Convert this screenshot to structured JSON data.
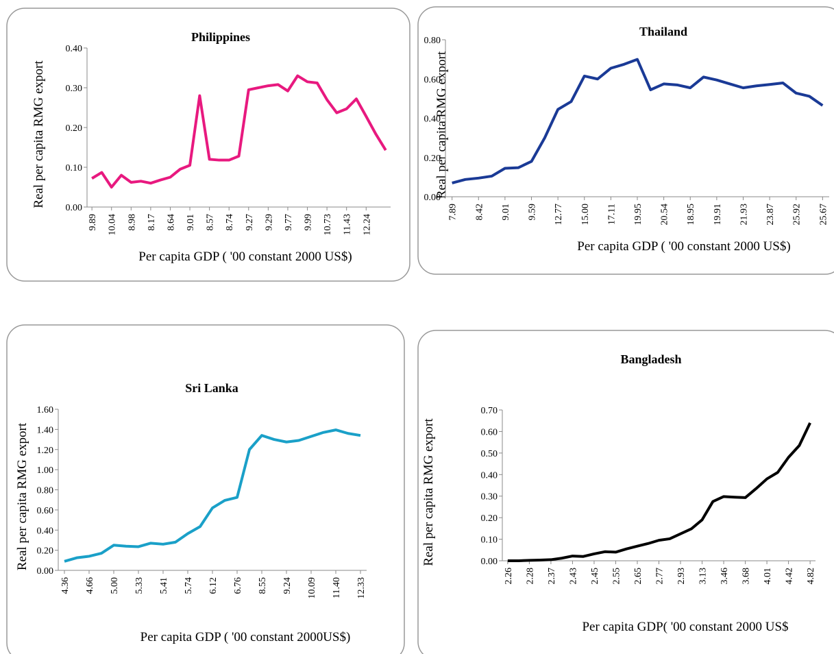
{
  "chart_data": [
    {
      "type": "line",
      "title": "Philippines",
      "y_label": "Real per capita RMG export",
      "x_label": "Per capita GDP ( '00 constant 2000 US$)",
      "categories": [
        "9.89",
        null,
        "10.04",
        null,
        "8.98",
        null,
        "8.17",
        null,
        "8.64",
        null,
        "9.01",
        null,
        "8.57",
        null,
        "8.74",
        null,
        "9.27",
        null,
        "9.29",
        null,
        "9.77",
        null,
        "9.99",
        null,
        "10.73",
        null,
        "11.43",
        null,
        "12.24",
        null,
        null
      ],
      "series": [
        {
          "name": "Philippines",
          "color": "#e8197f",
          "values": [
            0.072,
            0.087,
            0.05,
            0.08,
            0.062,
            0.065,
            0.06,
            0.068,
            0.075,
            0.095,
            0.105,
            0.28,
            0.12,
            0.118,
            0.118,
            0.128,
            0.295,
            0.3,
            0.305,
            0.308,
            0.292,
            0.33,
            0.315,
            0.312,
            0.27,
            0.237,
            0.247,
            0.272,
            0.228,
            0.183,
            0.143
          ]
        }
      ],
      "ylim": [
        0,
        0.4
      ],
      "yticks": [
        {
          "value": 0,
          "label": "0.00"
        },
        {
          "value": 0.1,
          "label": "0.10"
        },
        {
          "value": 0.2,
          "label": "0.20"
        },
        {
          "value": 0.3,
          "label": "0.30"
        },
        {
          "value": 0.4,
          "label": "0.40"
        }
      ]
    },
    {
      "type": "line",
      "title": "Thailand",
      "y_label": "Real per capita RMG export",
      "x_label": "Per capita GDP ( '00 constant 2000 US$)",
      "categories": [
        "7.89",
        null,
        "8.42",
        null,
        "9.01",
        null,
        "9.59",
        null,
        "12.77",
        null,
        "15.00",
        null,
        "17.11",
        null,
        "19.95",
        null,
        "20.54",
        null,
        "18.95",
        null,
        "19.91",
        null,
        "21.93",
        null,
        "23.87",
        null,
        "25.92",
        null,
        "25.67"
      ],
      "series": [
        {
          "name": "Thailand",
          "color": "#1a3a96",
          "values": [
            0.07,
            0.088,
            0.095,
            0.105,
            0.145,
            0.148,
            0.18,
            0.3,
            0.445,
            0.485,
            0.615,
            0.6,
            0.655,
            0.675,
            0.7,
            0.545,
            0.575,
            0.57,
            0.555,
            0.61,
            0.595,
            0.575,
            0.555,
            0.565,
            0.572,
            0.58,
            0.528,
            0.512,
            0.465
          ]
        }
      ],
      "ylim": [
        0,
        0.8
      ],
      "yticks": [
        {
          "value": 0,
          "label": "0.00"
        },
        {
          "value": 0.2,
          "label": "0.20"
        },
        {
          "value": 0.4,
          "label": "0.40"
        },
        {
          "value": 0.6,
          "label": "0.60"
        },
        {
          "value": 0.8,
          "label": "0.80"
        }
      ]
    },
    {
      "type": "line",
      "title": "Sri Lanka",
      "y_label": "Real per capita RMG export",
      "x_label": "Per capita GDP ( '00 constant 2000US$)",
      "categories": [
        "4.36",
        null,
        "4.66",
        null,
        "5.00",
        null,
        "5.33",
        null,
        "5.41",
        null,
        "5.74",
        null,
        "6.12",
        null,
        "6.76",
        null,
        "8.55",
        null,
        "9.24",
        null,
        "10.09",
        null,
        "11.40",
        null,
        "12.33"
      ],
      "series": [
        {
          "name": "Sri Lanka",
          "color": "#1aa0c8",
          "values": [
            0.09,
            0.125,
            0.14,
            0.17,
            0.25,
            0.24,
            0.235,
            0.27,
            0.26,
            0.28,
            0.365,
            0.435,
            0.62,
            0.695,
            0.725,
            1.2,
            1.34,
            1.3,
            1.275,
            1.29,
            1.33,
            1.37,
            1.395,
            1.36,
            1.34
          ]
        }
      ],
      "ylim": [
        0,
        1.6
      ],
      "yticks": [
        {
          "value": 0,
          "label": "0.00"
        },
        {
          "value": 0.2,
          "label": "0.20"
        },
        {
          "value": 0.4,
          "label": "0.40"
        },
        {
          "value": 0.6,
          "label": "0.60"
        },
        {
          "value": 0.8,
          "label": "0.80"
        },
        {
          "value": 1,
          "label": "1.00"
        },
        {
          "value": 1.2,
          "label": "1.20"
        },
        {
          "value": 1.4,
          "label": "1.40"
        },
        {
          "value": 1.6,
          "label": "1.60"
        }
      ]
    },
    {
      "type": "line",
      "title": "Bangladesh",
      "y_label": "Real per capita RMG export",
      "x_label": "Per capita GDP( '00 constant 2000 US$",
      "categories": [
        "2.26",
        null,
        "2.28",
        null,
        "2.37",
        null,
        "2.43",
        null,
        "2.45",
        null,
        "2.55",
        null,
        "2.65",
        null,
        "2.77",
        null,
        "2.93",
        null,
        "3.13",
        null,
        "3.46",
        null,
        "3.68",
        null,
        "4.01",
        null,
        "4.42",
        null,
        "4.82"
      ],
      "series": [
        {
          "name": "Bangladesh",
          "color": "#000000",
          "values": [
            0,
            0,
            0.002,
            0.003,
            0.005,
            0.012,
            0.022,
            0.02,
            0.032,
            0.042,
            0.04,
            0.055,
            0.068,
            0.08,
            0.095,
            0.102,
            0.125,
            0.148,
            0.19,
            0.275,
            0.298,
            0.295,
            0.293,
            0.335,
            0.38,
            0.41,
            0.48,
            0.535,
            0.64
          ]
        }
      ],
      "ylim": [
        0,
        0.7
      ],
      "yticks": [
        {
          "value": 0,
          "label": "0.00"
        },
        {
          "value": 0.1,
          "label": "0.10"
        },
        {
          "value": 0.2,
          "label": "0.20"
        },
        {
          "value": 0.3,
          "label": "0.30"
        },
        {
          "value": 0.4,
          "label": "0.40"
        },
        {
          "value": 0.5,
          "label": "0.50"
        },
        {
          "value": 0.6,
          "label": "0.60"
        },
        {
          "value": 0.7,
          "label": "0.70"
        }
      ]
    }
  ]
}
